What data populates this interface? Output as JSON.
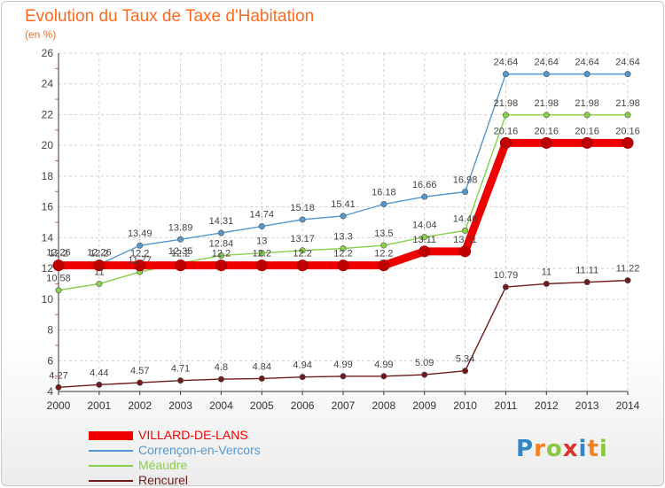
{
  "header": {
    "title": "Evolution du Taux de Taxe d'Habitation",
    "unit": "(en %)"
  },
  "chart_data": {
    "type": "line",
    "title": "Evolution du Taux de Taxe d'Habitation",
    "ylabel": "(en %)",
    "xlabel": "",
    "x": [
      "2000",
      "2001",
      "2002",
      "2003",
      "2004",
      "2005",
      "2006",
      "2007",
      "2008",
      "2009",
      "2010",
      "2011",
      "2012",
      "2013",
      "2014"
    ],
    "ylim": [
      4,
      26
    ],
    "yticks": [
      "4",
      "6",
      "8",
      "10",
      "12",
      "14",
      "16",
      "18",
      "20",
      "22",
      "24",
      "26"
    ],
    "grid": true,
    "legend_position": "bottom-left",
    "series": [
      {
        "name": "VILLARD-DE-LANS",
        "color": "#ee0000",
        "values": [
          12.2,
          12.2,
          12.2,
          12.2,
          12.2,
          12.2,
          12.2,
          12.2,
          12.2,
          13.11,
          13.11,
          20.16,
          20.16,
          20.16,
          20.16
        ],
        "labels": [
          "12.2",
          "12.2",
          "12.2",
          "12.2",
          "12.2",
          "12.2",
          "12.2",
          "12.2",
          "12.2",
          "13.11",
          "13.11",
          "20.16",
          "20.16",
          "20.16",
          "20.16"
        ]
      },
      {
        "name": "Corrençon-en-Vercors",
        "color": "#5598d0",
        "values": [
          12.26,
          12.26,
          13.49,
          13.89,
          14.31,
          14.74,
          15.18,
          15.41,
          16.18,
          16.66,
          16.98,
          24.64,
          24.64,
          24.64,
          24.64
        ],
        "labels": [
          "12.26",
          "12.26",
          "13.49",
          "13.89",
          "14.31",
          "14.74",
          "15.18",
          "15.41",
          "16.18",
          "16.66",
          "16.98",
          "24.64",
          "24.64",
          "24.64",
          "24.64"
        ]
      },
      {
        "name": "Méaudre",
        "color": "#88d048",
        "values": [
          10.58,
          11,
          11.77,
          12.35,
          12.84,
          13,
          13.17,
          13.3,
          13.5,
          14.04,
          14.46,
          21.98,
          21.98,
          21.98,
          21.98
        ],
        "labels": [
          "10.58",
          "11",
          "11.77",
          "12.35",
          "12.84",
          "13",
          "13.17",
          "13.3",
          "13.5",
          "14.04",
          "14.46",
          "21.98",
          "21.98",
          "21.98",
          "21.98"
        ]
      },
      {
        "name": "Rencurel",
        "color": "#6e1a1a",
        "values": [
          4.27,
          4.44,
          4.57,
          4.71,
          4.8,
          4.84,
          4.94,
          4.99,
          4.99,
          5.09,
          5.34,
          10.79,
          11,
          11.11,
          11.22
        ],
        "labels": [
          "4.27",
          "4.44",
          "4.57",
          "4.71",
          "4.8",
          "4.84",
          "4.94",
          "4.99",
          "4.99",
          "5.09",
          "5.34",
          "10.79",
          "11",
          "11.11",
          "11.22"
        ]
      }
    ]
  },
  "legend": {
    "items": [
      {
        "label": "VILLARD-DE-LANS",
        "color": "#ee0000"
      },
      {
        "label": "Corrençon-en-Vercors",
        "color": "#5598d0"
      },
      {
        "label": "Méaudre",
        "color": "#88d048"
      },
      {
        "label": "Rencurel",
        "color": "#6e1a1a"
      }
    ]
  },
  "logo": {
    "text": "Proxiti",
    "letters": [
      {
        "ch": "P",
        "color": "#2f86c8"
      },
      {
        "ch": "r",
        "color": "#f58220"
      },
      {
        "ch": "o",
        "color": "#8cc63f"
      },
      {
        "ch": "x",
        "color": "#e0312b"
      },
      {
        "ch": "i",
        "color": "#2f86c8"
      },
      {
        "ch": "t",
        "color": "#f58220"
      },
      {
        "ch": "i",
        "color": "#8cc63f"
      }
    ]
  }
}
